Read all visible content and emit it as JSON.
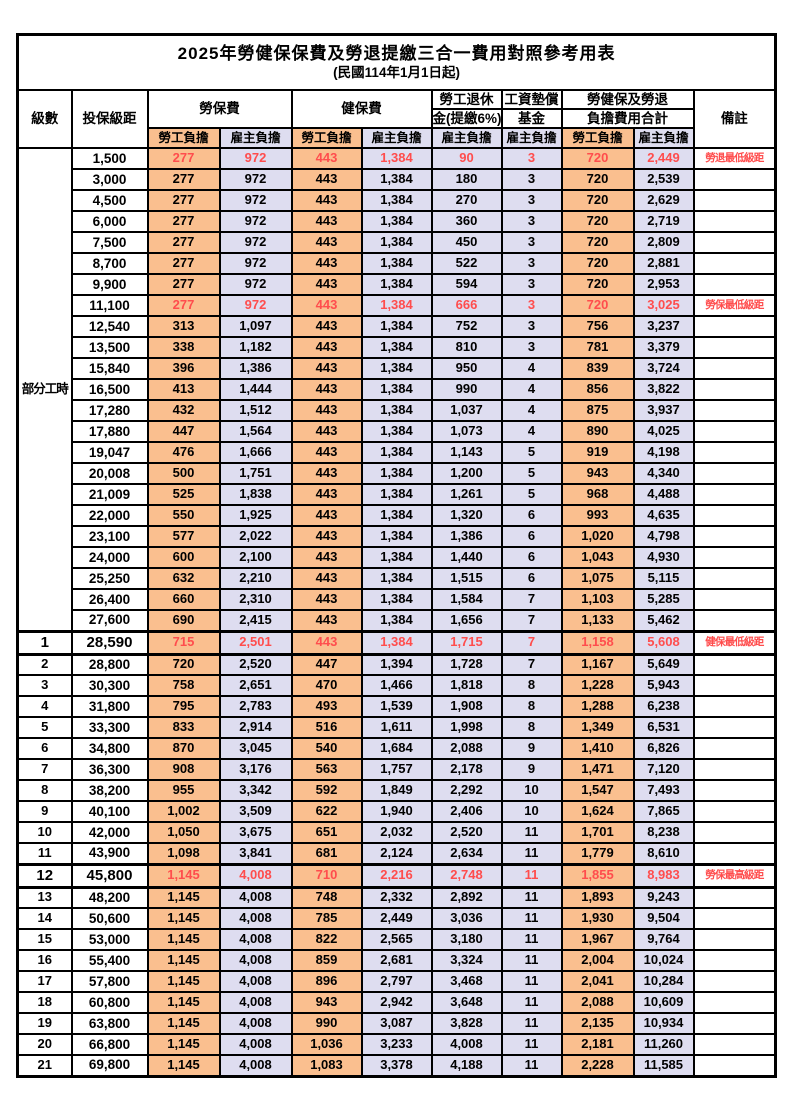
{
  "title": "2025年勞健保保費及勞退提繳三合一費用對照參考用表",
  "subtitle": "(民國114年1月1日起)",
  "colors": {
    "employee_bg": "#FABF8F",
    "employer_bg": "#DEDDF0",
    "highlight_text": "#FF4D4D",
    "border": "#000000"
  },
  "columns": {
    "level": "級數",
    "bracket": "投保級距",
    "labor_group": "勞保費",
    "health_group": "健保費",
    "pension_line1": "勞工退休",
    "pension_line2": "金(提繳6%)",
    "wage_fund_line1": "工資墊償",
    "wage_fund_line2": "基金",
    "total_line1": "勞健保及勞退",
    "total_line2": "負擔費用合計",
    "employee": "勞工負擔",
    "employer": "雇主負擔",
    "remark": "備註"
  },
  "part_time": {
    "label": "部分工時",
    "row_span": 23
  },
  "rows": [
    {
      "bracket": "1,500",
      "values": [
        "277",
        "972",
        "443",
        "1,384",
        "90",
        "3",
        "720",
        "2,449"
      ],
      "remark": "勞退最低級距",
      "red": true
    },
    {
      "bracket": "3,000",
      "values": [
        "277",
        "972",
        "443",
        "1,384",
        "180",
        "3",
        "720",
        "2,539"
      ],
      "remark": ""
    },
    {
      "bracket": "4,500",
      "values": [
        "277",
        "972",
        "443",
        "1,384",
        "270",
        "3",
        "720",
        "2,629"
      ],
      "remark": ""
    },
    {
      "bracket": "6,000",
      "values": [
        "277",
        "972",
        "443",
        "1,384",
        "360",
        "3",
        "720",
        "2,719"
      ],
      "remark": ""
    },
    {
      "bracket": "7,500",
      "values": [
        "277",
        "972",
        "443",
        "1,384",
        "450",
        "3",
        "720",
        "2,809"
      ],
      "remark": ""
    },
    {
      "bracket": "8,700",
      "values": [
        "277",
        "972",
        "443",
        "1,384",
        "522",
        "3",
        "720",
        "2,881"
      ],
      "remark": ""
    },
    {
      "bracket": "9,900",
      "values": [
        "277",
        "972",
        "443",
        "1,384",
        "594",
        "3",
        "720",
        "2,953"
      ],
      "remark": ""
    },
    {
      "bracket": "11,100",
      "values": [
        "277",
        "972",
        "443",
        "1,384",
        "666",
        "3",
        "720",
        "3,025"
      ],
      "remark": "勞保最低級距",
      "red": true
    },
    {
      "bracket": "12,540",
      "values": [
        "313",
        "1,097",
        "443",
        "1,384",
        "752",
        "3",
        "756",
        "3,237"
      ],
      "remark": ""
    },
    {
      "bracket": "13,500",
      "values": [
        "338",
        "1,182",
        "443",
        "1,384",
        "810",
        "3",
        "781",
        "3,379"
      ],
      "remark": ""
    },
    {
      "bracket": "15,840",
      "values": [
        "396",
        "1,386",
        "443",
        "1,384",
        "950",
        "4",
        "839",
        "3,724"
      ],
      "remark": ""
    },
    {
      "bracket": "16,500",
      "values": [
        "413",
        "1,444",
        "443",
        "1,384",
        "990",
        "4",
        "856",
        "3,822"
      ],
      "remark": ""
    },
    {
      "bracket": "17,280",
      "values": [
        "432",
        "1,512",
        "443",
        "1,384",
        "1,037",
        "4",
        "875",
        "3,937"
      ],
      "remark": ""
    },
    {
      "bracket": "17,880",
      "values": [
        "447",
        "1,564",
        "443",
        "1,384",
        "1,073",
        "4",
        "890",
        "4,025"
      ],
      "remark": ""
    },
    {
      "bracket": "19,047",
      "values": [
        "476",
        "1,666",
        "443",
        "1,384",
        "1,143",
        "5",
        "919",
        "4,198"
      ],
      "remark": ""
    },
    {
      "bracket": "20,008",
      "values": [
        "500",
        "1,751",
        "443",
        "1,384",
        "1,200",
        "5",
        "943",
        "4,340"
      ],
      "remark": ""
    },
    {
      "bracket": "21,009",
      "values": [
        "525",
        "1,838",
        "443",
        "1,384",
        "1,261",
        "5",
        "968",
        "4,488"
      ],
      "remark": ""
    },
    {
      "bracket": "22,000",
      "values": [
        "550",
        "1,925",
        "443",
        "1,384",
        "1,320",
        "6",
        "993",
        "4,635"
      ],
      "remark": ""
    },
    {
      "bracket": "23,100",
      "values": [
        "577",
        "2,022",
        "443",
        "1,384",
        "1,386",
        "6",
        "1,020",
        "4,798"
      ],
      "remark": ""
    },
    {
      "bracket": "24,000",
      "values": [
        "600",
        "2,100",
        "443",
        "1,384",
        "1,440",
        "6",
        "1,043",
        "4,930"
      ],
      "remark": ""
    },
    {
      "bracket": "25,250",
      "values": [
        "632",
        "2,210",
        "443",
        "1,384",
        "1,515",
        "6",
        "1,075",
        "5,115"
      ],
      "remark": ""
    },
    {
      "bracket": "26,400",
      "values": [
        "660",
        "2,310",
        "443",
        "1,384",
        "1,584",
        "7",
        "1,103",
        "5,285"
      ],
      "remark": ""
    },
    {
      "bracket": "27,600",
      "values": [
        "690",
        "2,415",
        "443",
        "1,384",
        "1,656",
        "7",
        "1,133",
        "5,462"
      ],
      "remark": ""
    },
    {
      "level": "1",
      "bracket": "28,590",
      "values": [
        "715",
        "2,501",
        "443",
        "1,384",
        "1,715",
        "7",
        "1,158",
        "5,608"
      ],
      "remark": "健保最低級距",
      "red": true,
      "bold": true,
      "thick": true
    },
    {
      "level": "2",
      "bracket": "28,800",
      "values": [
        "720",
        "2,520",
        "447",
        "1,394",
        "1,728",
        "7",
        "1,167",
        "5,649"
      ],
      "remark": ""
    },
    {
      "level": "3",
      "bracket": "30,300",
      "values": [
        "758",
        "2,651",
        "470",
        "1,466",
        "1,818",
        "8",
        "1,228",
        "5,943"
      ],
      "remark": ""
    },
    {
      "level": "4",
      "bracket": "31,800",
      "values": [
        "795",
        "2,783",
        "493",
        "1,539",
        "1,908",
        "8",
        "1,288",
        "6,238"
      ],
      "remark": ""
    },
    {
      "level": "5",
      "bracket": "33,300",
      "values": [
        "833",
        "2,914",
        "516",
        "1,611",
        "1,998",
        "8",
        "1,349",
        "6,531"
      ],
      "remark": ""
    },
    {
      "level": "6",
      "bracket": "34,800",
      "values": [
        "870",
        "3,045",
        "540",
        "1,684",
        "2,088",
        "9",
        "1,410",
        "6,826"
      ],
      "remark": ""
    },
    {
      "level": "7",
      "bracket": "36,300",
      "values": [
        "908",
        "3,176",
        "563",
        "1,757",
        "2,178",
        "9",
        "1,471",
        "7,120"
      ],
      "remark": ""
    },
    {
      "level": "8",
      "bracket": "38,200",
      "values": [
        "955",
        "3,342",
        "592",
        "1,849",
        "2,292",
        "10",
        "1,547",
        "7,493"
      ],
      "remark": ""
    },
    {
      "level": "9",
      "bracket": "40,100",
      "values": [
        "1,002",
        "3,509",
        "622",
        "1,940",
        "2,406",
        "10",
        "1,624",
        "7,865"
      ],
      "remark": ""
    },
    {
      "level": "10",
      "bracket": "42,000",
      "values": [
        "1,050",
        "3,675",
        "651",
        "2,032",
        "2,520",
        "11",
        "1,701",
        "8,238"
      ],
      "remark": ""
    },
    {
      "level": "11",
      "bracket": "43,900",
      "values": [
        "1,098",
        "3,841",
        "681",
        "2,124",
        "2,634",
        "11",
        "1,779",
        "8,610"
      ],
      "remark": ""
    },
    {
      "level": "12",
      "bracket": "45,800",
      "values": [
        "1,145",
        "4,008",
        "710",
        "2,216",
        "2,748",
        "11",
        "1,855",
        "8,983"
      ],
      "remark": "勞保最高級距",
      "red": true,
      "bold": true,
      "thick": true
    },
    {
      "level": "13",
      "bracket": "48,200",
      "values": [
        "1,145",
        "4,008",
        "748",
        "2,332",
        "2,892",
        "11",
        "1,893",
        "9,243"
      ],
      "remark": ""
    },
    {
      "level": "14",
      "bracket": "50,600",
      "values": [
        "1,145",
        "4,008",
        "785",
        "2,449",
        "3,036",
        "11",
        "1,930",
        "9,504"
      ],
      "remark": ""
    },
    {
      "level": "15",
      "bracket": "53,000",
      "values": [
        "1,145",
        "4,008",
        "822",
        "2,565",
        "3,180",
        "11",
        "1,967",
        "9,764"
      ],
      "remark": ""
    },
    {
      "level": "16",
      "bracket": "55,400",
      "values": [
        "1,145",
        "4,008",
        "859",
        "2,681",
        "3,324",
        "11",
        "2,004",
        "10,024"
      ],
      "remark": ""
    },
    {
      "level": "17",
      "bracket": "57,800",
      "values": [
        "1,145",
        "4,008",
        "896",
        "2,797",
        "3,468",
        "11",
        "2,041",
        "10,284"
      ],
      "remark": ""
    },
    {
      "level": "18",
      "bracket": "60,800",
      "values": [
        "1,145",
        "4,008",
        "943",
        "2,942",
        "3,648",
        "11",
        "2,088",
        "10,609"
      ],
      "remark": ""
    },
    {
      "level": "19",
      "bracket": "63,800",
      "values": [
        "1,145",
        "4,008",
        "990",
        "3,087",
        "3,828",
        "11",
        "2,135",
        "10,934"
      ],
      "remark": ""
    },
    {
      "level": "20",
      "bracket": "66,800",
      "values": [
        "1,145",
        "4,008",
        "1,036",
        "3,233",
        "4,008",
        "11",
        "2,181",
        "11,260"
      ],
      "remark": ""
    },
    {
      "level": "21",
      "bracket": "69,800",
      "values": [
        "1,145",
        "4,008",
        "1,083",
        "3,378",
        "4,188",
        "11",
        "2,228",
        "11,585"
      ],
      "remark": ""
    }
  ]
}
